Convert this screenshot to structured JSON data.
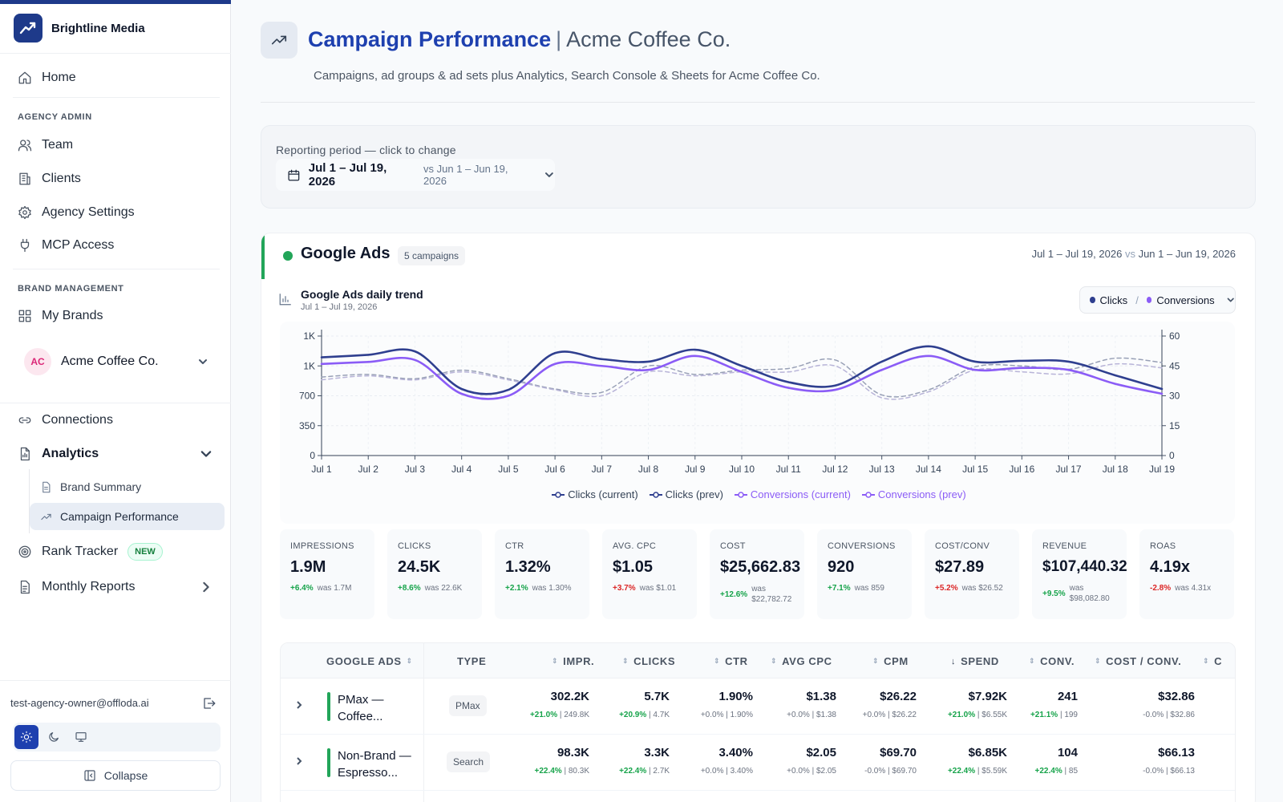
{
  "app": {
    "name": "Brightline Media",
    "colors": {
      "accent": "#1e40af",
      "brand_dark": "#1e3a8a",
      "google_green": "#22a559",
      "clicks": "#2f3f8f",
      "conversions": "#8b5cf6"
    }
  },
  "sidebar": {
    "home": "Home",
    "agency_admin_label": "AGENCY ADMIN",
    "team": "Team",
    "clients": "Clients",
    "agency_settings": "Agency Settings",
    "mcp_access": "MCP Access",
    "brand_management_label": "BRAND MANAGEMENT",
    "my_brands": "My Brands",
    "brand_selector": {
      "initials": "AC",
      "name": "Acme Coffee Co."
    },
    "connections": "Connections",
    "analytics": "Analytics",
    "brand_summary": "Brand Summary",
    "campaign_performance": "Campaign Performance",
    "rank_tracker": "Rank Tracker",
    "rank_tracker_badge": "NEW",
    "monthly_reports": "Monthly Reports",
    "user_email": "test-agency-owner@offloda.ai",
    "collapse": "Collapse"
  },
  "header": {
    "title": "Campaign Performance",
    "separator": "|",
    "client": "Acme Coffee Co.",
    "subtitle": "Campaigns, ad groups & ad sets plus Analytics, Search Console & Sheets for Acme Coffee Co."
  },
  "period": {
    "label": "Reporting period — click to change",
    "current": "Jul 1 – Jul 19, 2026",
    "compare": "vs Jun 1 – Jun 19, 2026"
  },
  "google_ads": {
    "title": "Google Ads",
    "campaign_count": "5 campaigns",
    "range_current": "Jul 1 – Jul 19, 2026",
    "range_vs": "vs",
    "range_prev": "Jun 1 – Jun 19, 2026",
    "trend_title": "Google Ads daily trend",
    "trend_sub": "Jul 1 – Jul 19, 2026",
    "metric_picker": {
      "left": "Clicks",
      "slash": "/",
      "right": "Conversions"
    },
    "legend": [
      "Clicks (current)",
      "Clicks (prev)",
      "Conversions (current)",
      "Conversions (prev)"
    ]
  },
  "chart_data": {
    "type": "line",
    "x": [
      "Jul 1",
      "Jul 2",
      "Jul 3",
      "Jul 4",
      "Jul 5",
      "Jul 6",
      "Jul 7",
      "Jul 8",
      "Jul 9",
      "Jul 10",
      "Jul 11",
      "Jul 12",
      "Jul 13",
      "Jul 14",
      "Jul 15",
      "Jul 16",
      "Jul 17",
      "Jul 18",
      "Jul 19"
    ],
    "y_left_ticks": [
      "0",
      "350",
      "700",
      "1K",
      "1K"
    ],
    "y_left_tick_values": [
      0,
      350,
      700,
      1050,
      1400
    ],
    "y_right_ticks": [
      "0",
      "15",
      "30",
      "45",
      "60"
    ],
    "y_right_tick_values": [
      0,
      15,
      30,
      45,
      60
    ],
    "ylim_left": [
      0,
      1400
    ],
    "ylim_right": [
      0,
      60
    ],
    "series": [
      {
        "name": "Clicks (current)",
        "axis": "left",
        "color": "#2f3f8f",
        "dashed": false,
        "values": [
          1150,
          1180,
          1220,
          780,
          770,
          1200,
          1130,
          1100,
          1240,
          1050,
          860,
          820,
          1100,
          1280,
          1100,
          1110,
          1100,
          940,
          780
        ]
      },
      {
        "name": "Clicks (prev)",
        "axis": "left",
        "color": "#98a0b6",
        "dashed": true,
        "values": [
          920,
          950,
          900,
          1000,
          900,
          780,
          740,
          1050,
          950,
          1000,
          1020,
          1120,
          710,
          770,
          1040,
          1050,
          1010,
          1140,
          1090
        ]
      },
      {
        "name": "Conversions (current)",
        "axis": "right",
        "color": "#8b5cf6",
        "dashed": false,
        "values": [
          46,
          47,
          48,
          31,
          30,
          46,
          45,
          43,
          50,
          42,
          34,
          33,
          43,
          50,
          43,
          44,
          43,
          36,
          31
        ]
      },
      {
        "name": "Conversions (prev)",
        "axis": "right",
        "color": "#b8b4d8",
        "dashed": true,
        "values": [
          38,
          40,
          38,
          42,
          38,
          33,
          30,
          42,
          40,
          42,
          42,
          45,
          29,
          32,
          43,
          42,
          41,
          46,
          44
        ]
      }
    ],
    "grid": true,
    "legend_position": "bottom"
  },
  "kpis": [
    {
      "label": "IMPRESSIONS",
      "value": "1.9M",
      "delta": "+6.4%",
      "dir": "up",
      "was": "was 1.7M"
    },
    {
      "label": "CLICKS",
      "value": "24.5K",
      "delta": "+8.6%",
      "dir": "up",
      "was": "was 22.6K"
    },
    {
      "label": "CTR",
      "value": "1.32%",
      "delta": "+2.1%",
      "dir": "up",
      "was": "was 1.30%"
    },
    {
      "label": "AVG. CPC",
      "value": "$1.05",
      "delta": "+3.7%",
      "dir": "down",
      "was": "was $1.01"
    },
    {
      "label": "COST",
      "value": "$25,662.83",
      "delta": "+12.6%",
      "dir": "up",
      "was": "was $22,782.72"
    },
    {
      "label": "CONVERSIONS",
      "value": "920",
      "delta": "+7.1%",
      "dir": "up",
      "was": "was 859"
    },
    {
      "label": "COST/CONV",
      "value": "$27.89",
      "delta": "+5.2%",
      "dir": "down",
      "was": "was $26.52"
    },
    {
      "label": "REVENUE",
      "value": "$107,440.32",
      "delta": "+9.5%",
      "dir": "up",
      "was": "was $98,082.80"
    },
    {
      "label": "ROAS",
      "value": "4.19x",
      "delta": "-2.8%",
      "dir": "down",
      "was": "was 4.31x"
    }
  ],
  "table": {
    "headers": {
      "name": "GOOGLE ADS",
      "type": "TYPE",
      "impr": "IMPR.",
      "clicks": "CLICKS",
      "ctr": "CTR",
      "cpc": "AVG CPC",
      "cpm": "CPM",
      "spend": "SPEND",
      "conv": "CONV.",
      "cpa": "COST / CONV.",
      "more": "C"
    },
    "rows": [
      {
        "name": "PMax — Coffee...",
        "type": "PMax",
        "impr": {
          "v": "302.2K",
          "d": "+21.0%",
          "p": "| 249.8K"
        },
        "clicks": {
          "v": "5.7K",
          "d": "+20.9%",
          "p": "| 4.7K"
        },
        "ctr": {
          "v": "1.90%",
          "d": "+0.0%",
          "p": "| 1.90%"
        },
        "cpc": {
          "v": "$1.38",
          "d": "+0.0%",
          "p": "| $1.38"
        },
        "cpm": {
          "v": "$26.22",
          "d": "+0.0%",
          "p": "| $26.22"
        },
        "spend": {
          "v": "$7.92K",
          "d": "+21.0%",
          "p": "| $6.55K"
        },
        "conv": {
          "v": "241",
          "d": "+21.1%",
          "p": "| 199"
        },
        "cpa": {
          "v": "$32.86",
          "d": "-0.0%",
          "p": "| $32.86"
        }
      },
      {
        "name": "Non-Brand — Espresso...",
        "type": "Search",
        "impr": {
          "v": "98.3K",
          "d": "+22.4%",
          "p": "| 80.3K"
        },
        "clicks": {
          "v": "3.3K",
          "d": "+22.4%",
          "p": "| 2.7K"
        },
        "ctr": {
          "v": "3.40%",
          "d": "+0.0%",
          "p": "| 3.40%"
        },
        "cpc": {
          "v": "$2.05",
          "d": "+0.0%",
          "p": "| $2.05"
        },
        "cpm": {
          "v": "$69.70",
          "d": "-0.0%",
          "p": "| $69.70"
        },
        "spend": {
          "v": "$6.85K",
          "d": "+22.4%",
          "p": "| $5.59K"
        },
        "conv": {
          "v": "104",
          "d": "+22.4%",
          "p": "| 85"
        },
        "cpa": {
          "v": "$66.13",
          "d": "-0.0%",
          "p": "| $66.13"
        }
      }
    ]
  }
}
